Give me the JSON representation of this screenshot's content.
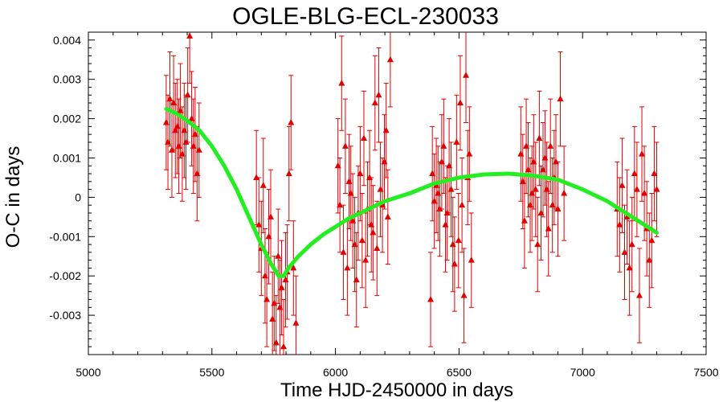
{
  "chart_data": {
    "type": "scatter",
    "title": "OGLE-BLG-ECL-230033",
    "xlabel": "Time HJD-2450000 in days",
    "ylabel": "O-C in days",
    "xlim": [
      5000,
      7500
    ],
    "ylim": [
      -0.004,
      0.0042
    ],
    "x_ticks": [
      5000,
      5500,
      6000,
      6500,
      7000,
      7500
    ],
    "x_tick_labels": [
      "5000",
      "5500",
      "6000",
      "6500",
      "7000",
      "7500"
    ],
    "y_ticks": [
      0.004,
      0.003,
      0.002,
      0.001,
      0,
      -0.001,
      -0.002,
      -0.003
    ],
    "y_tick_labels": [
      "0.004",
      "0.003",
      "0.002",
      "0.001",
      "0",
      "-0.001",
      "-0.002",
      "-0.003"
    ],
    "grid": false,
    "colors": {
      "points": "#e00000",
      "fit": "#22ee22"
    },
    "series": [
      {
        "kind": "points_with_errorbars",
        "x": [
          5315,
          5322,
          5330,
          5338,
          5345,
          5352,
          5360,
          5366,
          5372,
          5380,
          5388,
          5395,
          5402,
          5410,
          5418,
          5425,
          5432,
          5440,
          5448,
          5680,
          5690,
          5700,
          5708,
          5715,
          5722,
          5730,
          5738,
          5745,
          5752,
          5760,
          5768,
          5775,
          5782,
          5790,
          5798,
          5805,
          5812,
          5820,
          5830,
          5840,
          6010,
          6018,
          6025,
          6032,
          6040,
          6048,
          6055,
          6062,
          6070,
          6078,
          6085,
          6092,
          6100,
          6108,
          6115,
          6122,
          6130,
          6138,
          6145,
          6152,
          6160,
          6168,
          6175,
          6182,
          6190,
          6198,
          6205,
          6212,
          6222,
          6385,
          6392,
          6400,
          6408,
          6415,
          6422,
          6430,
          6438,
          6445,
          6452,
          6460,
          6468,
          6475,
          6482,
          6490,
          6498,
          6505,
          6512,
          6520,
          6528,
          6535,
          6542,
          6550,
          6750,
          6758,
          6765,
          6772,
          6780,
          6788,
          6795,
          6802,
          6810,
          6818,
          6825,
          6832,
          6840,
          6848,
          6855,
          6862,
          6870,
          6878,
          6885,
          6892,
          6900,
          6910,
          6925,
          7140,
          7150,
          7160,
          7170,
          7180,
          7190,
          7200,
          7210,
          7220,
          7230,
          7240,
          7250,
          7260,
          7270,
          7280,
          7290,
          7300
        ],
        "y": [
          0.0019,
          0.0014,
          0.0025,
          0.0012,
          0.0024,
          0.0017,
          0.0018,
          0.0013,
          0.0022,
          0.0011,
          0.0017,
          0.0014,
          0.0026,
          0.0041,
          0.002,
          0.0013,
          0.0016,
          0.0006,
          0.0012,
          0.0005,
          -0.0007,
          -0.0013,
          0.0003,
          -0.002,
          -0.0026,
          -0.001,
          -0.0005,
          -0.0031,
          -0.0027,
          -0.0037,
          -0.0015,
          -0.0028,
          -0.0023,
          -0.0038,
          -0.0021,
          -0.0019,
          0.0006,
          0.0019,
          -0.0018,
          -0.0032,
          0.0008,
          -0.0002,
          0.0029,
          -0.0014,
          0.0013,
          -0.0018,
          0.0004,
          0.0001,
          -0.0006,
          -0.0012,
          -0.0021,
          -0.0004,
          0.0006,
          -0.0011,
          0.0015,
          -0.0016,
          -0.0003,
          0.0005,
          -0.0007,
          -0.0009,
          0.0024,
          -0.0013,
          0.0026,
          0.0002,
          -0.0002,
          0.0009,
          0.0017,
          -0.0005,
          0.0035,
          -0.0026,
          0.0006,
          -0.0001,
          0.0003,
          0.0001,
          -0.0003,
          0.0009,
          0.0013,
          -0.0007,
          -0.0004,
          0.0008,
          0.0002,
          -0.0012,
          -0.0017,
          0.0014,
          -0.0011,
          0.0024,
          -0.0002,
          -0.0025,
          0.0031,
          0.0005,
          0.0011,
          -0.0016,
          0.0011,
          0.0004,
          -0.0006,
          0.0013,
          0.0007,
          -0.0002,
          0.0001,
          0.0009,
          0.0002,
          -0.0012,
          0.0015,
          -0.0004,
          0.0007,
          0.001,
          0.0002,
          -0.0008,
          0.0013,
          -0.0002,
          0.0005,
          0.0009,
          -0.0003,
          0.0025,
          0.0001,
          -0.0003,
          -0.0007,
          0.0003,
          -0.0014,
          -0.0005,
          -0.0018,
          -0.0012,
          0.0006,
          0.0002,
          -0.0025,
          0.0011,
          0.0001,
          -0.0008,
          -0.0016,
          -0.0011,
          0.0006,
          0.0002
        ],
        "yerr": 0.0012
      },
      {
        "kind": "fit_curve",
        "x": [
          5315,
          5350,
          5400,
          5450,
          5500,
          5550,
          5600,
          5650,
          5700,
          5740,
          5770,
          5790,
          5810,
          5850,
          5900,
          5950,
          6000,
          6050,
          6100,
          6150,
          6200,
          6300,
          6400,
          6500,
          6600,
          6700,
          6800,
          6900,
          7000,
          7100,
          7150,
          7200,
          7250,
          7300
        ],
        "y": [
          0.00225,
          0.00215,
          0.00195,
          0.0017,
          0.0013,
          0.0008,
          0.0002,
          -0.0005,
          -0.0012,
          -0.0017,
          -0.002,
          -0.002,
          -0.0018,
          -0.0015,
          -0.0012,
          -0.00095,
          -0.00075,
          -0.00055,
          -0.0004,
          -0.00025,
          -0.0001,
          0.0001,
          0.00035,
          0.0005,
          0.00058,
          0.0006,
          0.00055,
          0.00045,
          0.0002,
          -0.0001,
          -0.0003,
          -0.0005,
          -0.0007,
          -0.0009
        ]
      }
    ]
  }
}
